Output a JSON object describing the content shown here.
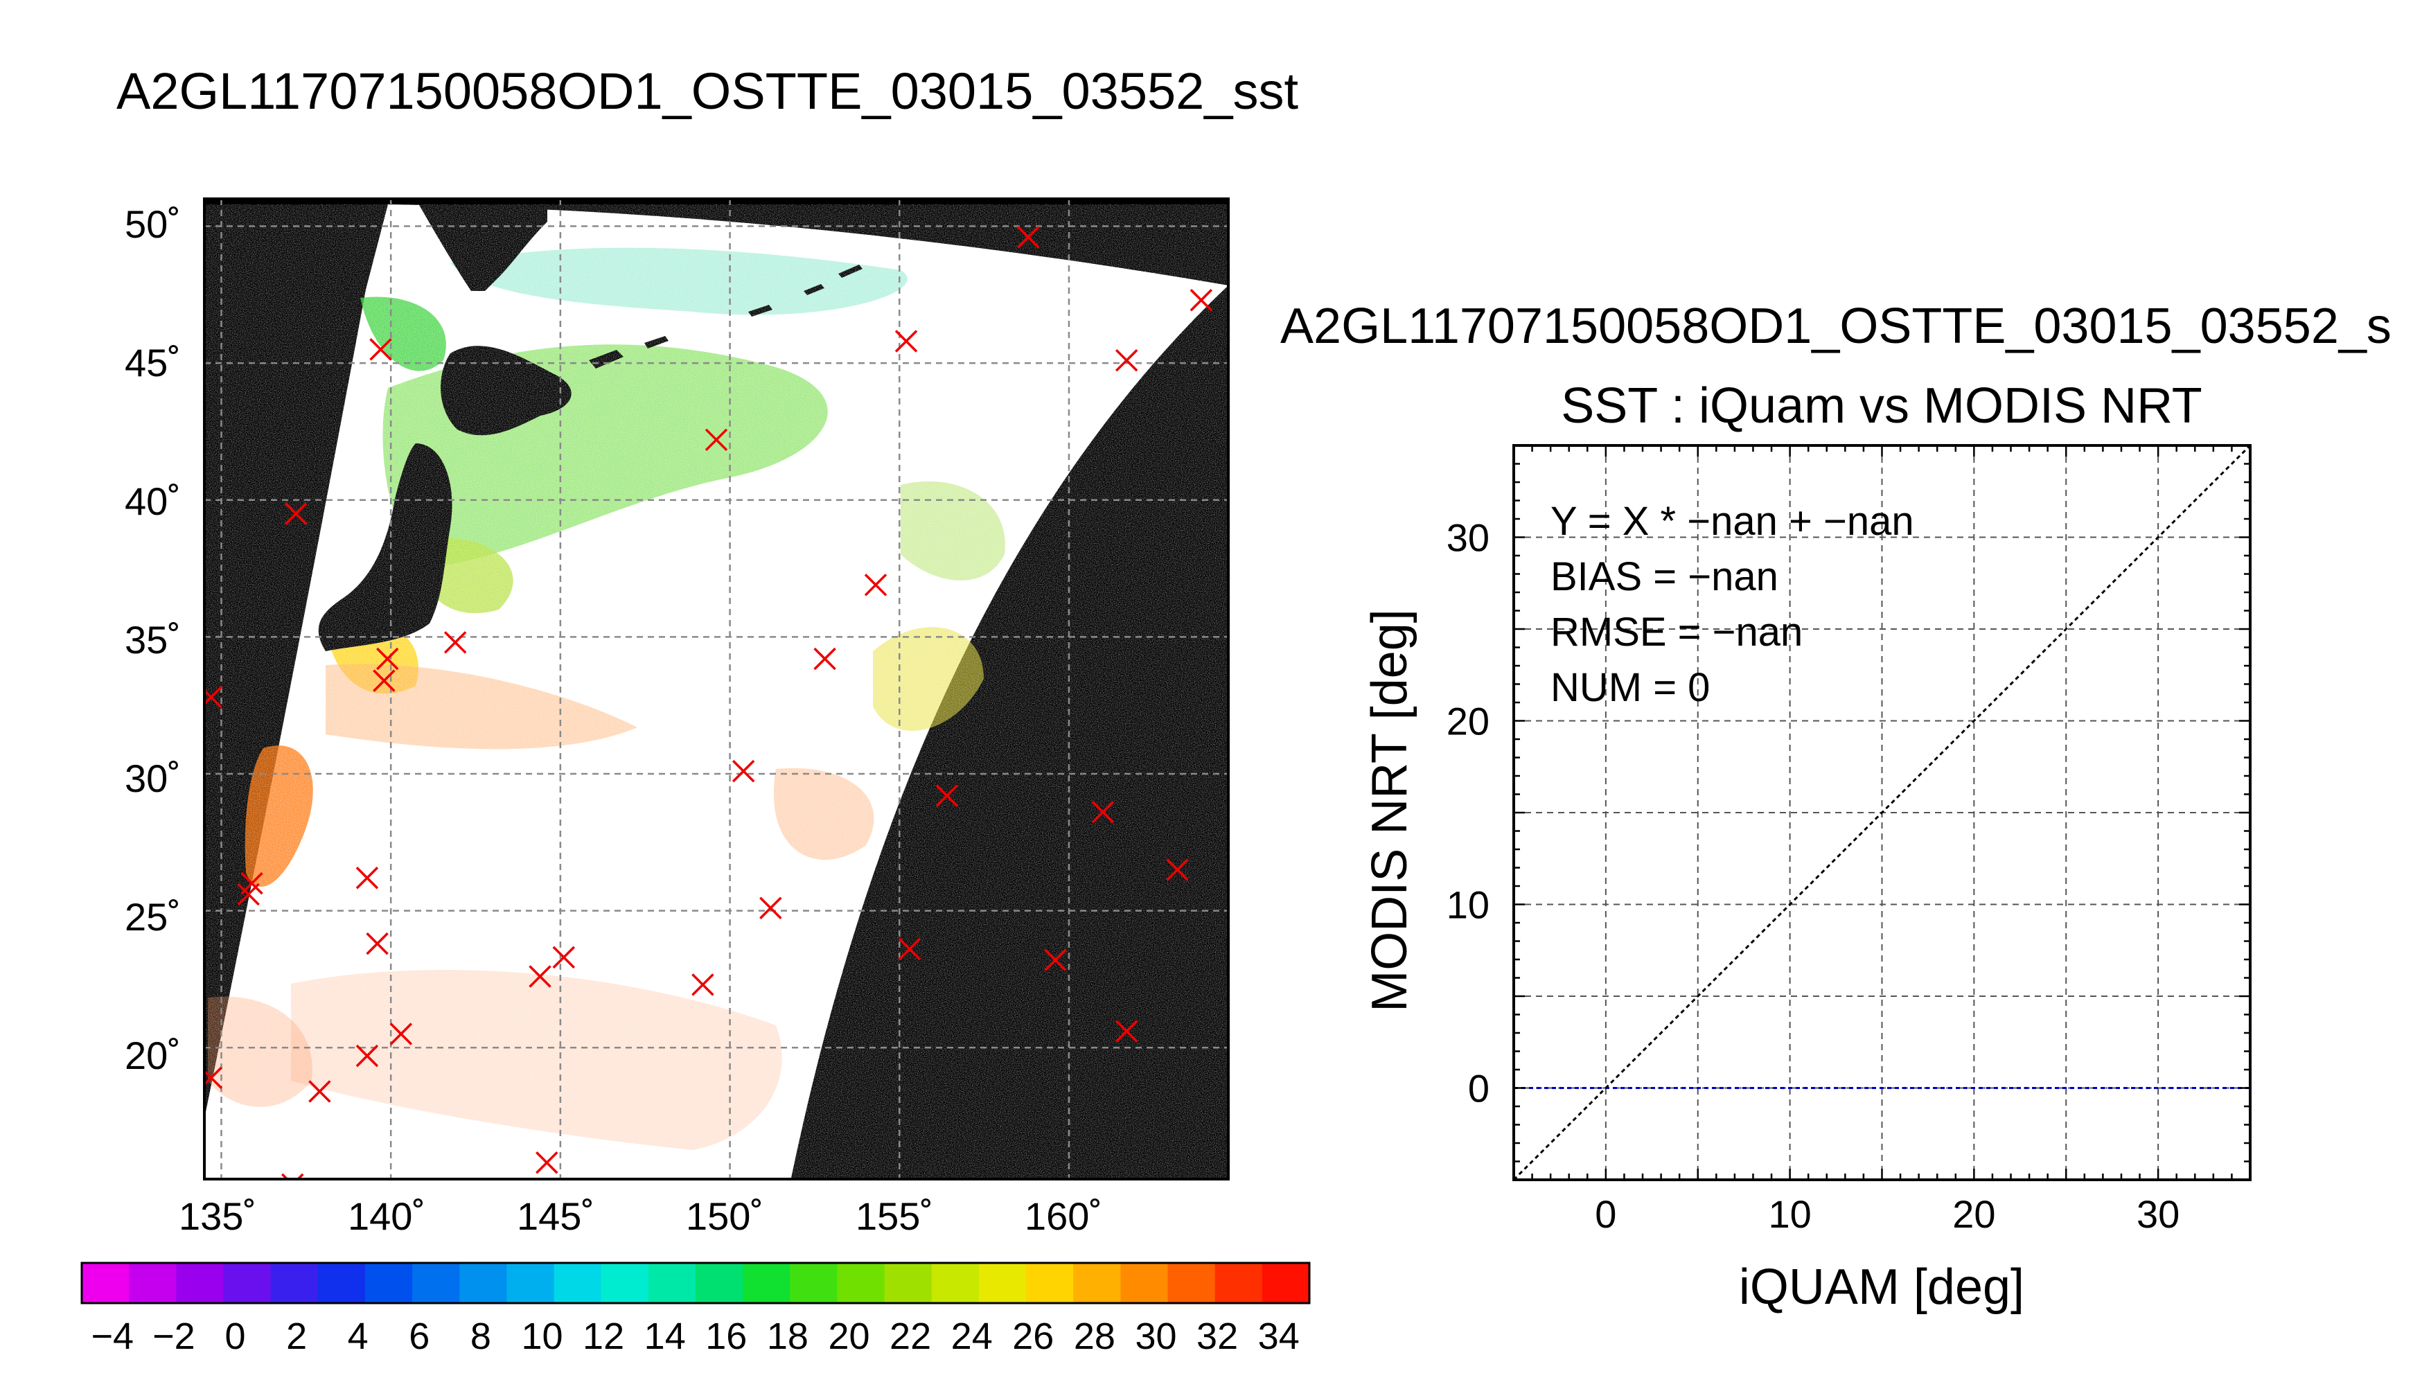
{
  "map": {
    "title": "A2GL11707150058OD1_OSTTE_03015_03552_sst",
    "lat_ticks": [
      "50˚",
      "45˚",
      "40˚",
      "35˚",
      "30˚",
      "25˚",
      "20˚"
    ],
    "lon_ticks": [
      "135˚",
      "140˚",
      "145˚",
      "150˚",
      "155˚",
      "160˚"
    ],
    "colorbar": {
      "labels": [
        "−4",
        "−2",
        "0",
        "2",
        "4",
        "6",
        "8",
        "10",
        "12",
        "14",
        "16",
        "18",
        "20",
        "22",
        "24",
        "26",
        "28",
        "30",
        "32",
        "34"
      ],
      "colors": [
        "#ee00ee",
        "#c400ee",
        "#9a00ee",
        "#6a10ee",
        "#3a20ee",
        "#1030ee",
        "#0050ee",
        "#0070ee",
        "#0090ee",
        "#00b0ee",
        "#00d8e8",
        "#00ecd0",
        "#00e8a8",
        "#00e070",
        "#10e030",
        "#40e010",
        "#70e000",
        "#a0e000",
        "#c8e800",
        "#e8e800",
        "#ffd400",
        "#ffb000",
        "#ff8c00",
        "#ff6000",
        "#ff3000",
        "#ff1000"
      ]
    },
    "markers": [
      {
        "lon": 161.7,
        "lat": 45.1
      },
      {
        "lon": 155.2,
        "lat": 45.8
      },
      {
        "lon": 139.7,
        "lat": 45.5
      },
      {
        "lon": 149.6,
        "lat": 42.2
      },
      {
        "lon": 137.2,
        "lat": 39.5
      },
      {
        "lon": 154.3,
        "lat": 36.9
      },
      {
        "lon": 141.9,
        "lat": 34.8
      },
      {
        "lon": 139.9,
        "lat": 34.2
      },
      {
        "lon": 139.8,
        "lat": 33.4
      },
      {
        "lon": 152.8,
        "lat": 34.2
      },
      {
        "lon": 134.7,
        "lat": 32.8
      },
      {
        "lon": 150.4,
        "lat": 30.1
      },
      {
        "lon": 156.4,
        "lat": 29.2
      },
      {
        "lon": 161.0,
        "lat": 28.6
      },
      {
        "lon": 135.9,
        "lat": 26.0
      },
      {
        "lon": 135.8,
        "lat": 25.6
      },
      {
        "lon": 139.3,
        "lat": 26.2
      },
      {
        "lon": 163.2,
        "lat": 26.5
      },
      {
        "lon": 151.2,
        "lat": 25.1
      },
      {
        "lon": 139.6,
        "lat": 23.8
      },
      {
        "lon": 155.3,
        "lat": 23.6
      },
      {
        "lon": 159.6,
        "lat": 23.2
      },
      {
        "lon": 145.1,
        "lat": 23.3
      },
      {
        "lon": 144.4,
        "lat": 22.6
      },
      {
        "lon": 149.2,
        "lat": 22.3
      },
      {
        "lon": 140.3,
        "lat": 20.5
      },
      {
        "lon": 139.3,
        "lat": 19.7
      },
      {
        "lon": 137.9,
        "lat": 18.4
      },
      {
        "lon": 134.7,
        "lat": 18.9
      },
      {
        "lon": 161.7,
        "lat": 20.6
      },
      {
        "lon": 158.8,
        "lat": 49.6
      },
      {
        "lon": 163.9,
        "lat": 47.3
      },
      {
        "lon": 144.6,
        "lat": 15.8
      },
      {
        "lon": 137.1,
        "lat": 15.0
      }
    ]
  },
  "scatter": {
    "file_title": "A2GL11707150058OD1_OSTTE_03015_03552_s",
    "title": "SST : iQuam vs MODIS NRT",
    "xlabel": "iQUAM [deg]",
    "ylabel": "MODIS NRT [deg]",
    "stats": [
      "Y = X * −nan + −nan",
      "BIAS = −nan",
      "RMSE = −nan",
      "NUM = 0"
    ]
  },
  "chart_data": [
    {
      "type": "heatmap",
      "title": "A2GL11707150058OD1_OSTTE_03015_03552_sst",
      "xlabel": "",
      "ylabel": "",
      "x_ticks": [
        135,
        140,
        145,
        150,
        155,
        160
      ],
      "y_ticks": [
        50,
        45,
        40,
        35,
        30,
        25,
        20
      ],
      "xlim": [
        134.5,
        164.7
      ],
      "ylim": [
        15.2,
        51
      ],
      "colorbar_ticks": [
        -4,
        -2,
        0,
        2,
        4,
        6,
        8,
        10,
        12,
        14,
        16,
        18,
        20,
        22,
        24,
        26,
        28,
        30,
        32,
        34
      ],
      "colorbar_range": [
        -5,
        35
      ],
      "grid": true
    },
    {
      "type": "scatter",
      "title": "SST : iQuam vs MODIS NRT",
      "xlabel": "iQUAM [deg]",
      "ylabel": "MODIS NRT [deg]",
      "xlim": [
        -5,
        35
      ],
      "ylim": [
        -5,
        35
      ],
      "x_ticks": [
        0,
        10,
        20,
        30
      ],
      "y_ticks": [
        0,
        10,
        20,
        30
      ],
      "grid": true,
      "points": [],
      "reference_lines": [
        {
          "kind": "identity",
          "slope": 1,
          "intercept": 0,
          "color": "#000000"
        },
        {
          "kind": "horizontal",
          "y": 0,
          "color": "#0000cc"
        }
      ]
    }
  ]
}
